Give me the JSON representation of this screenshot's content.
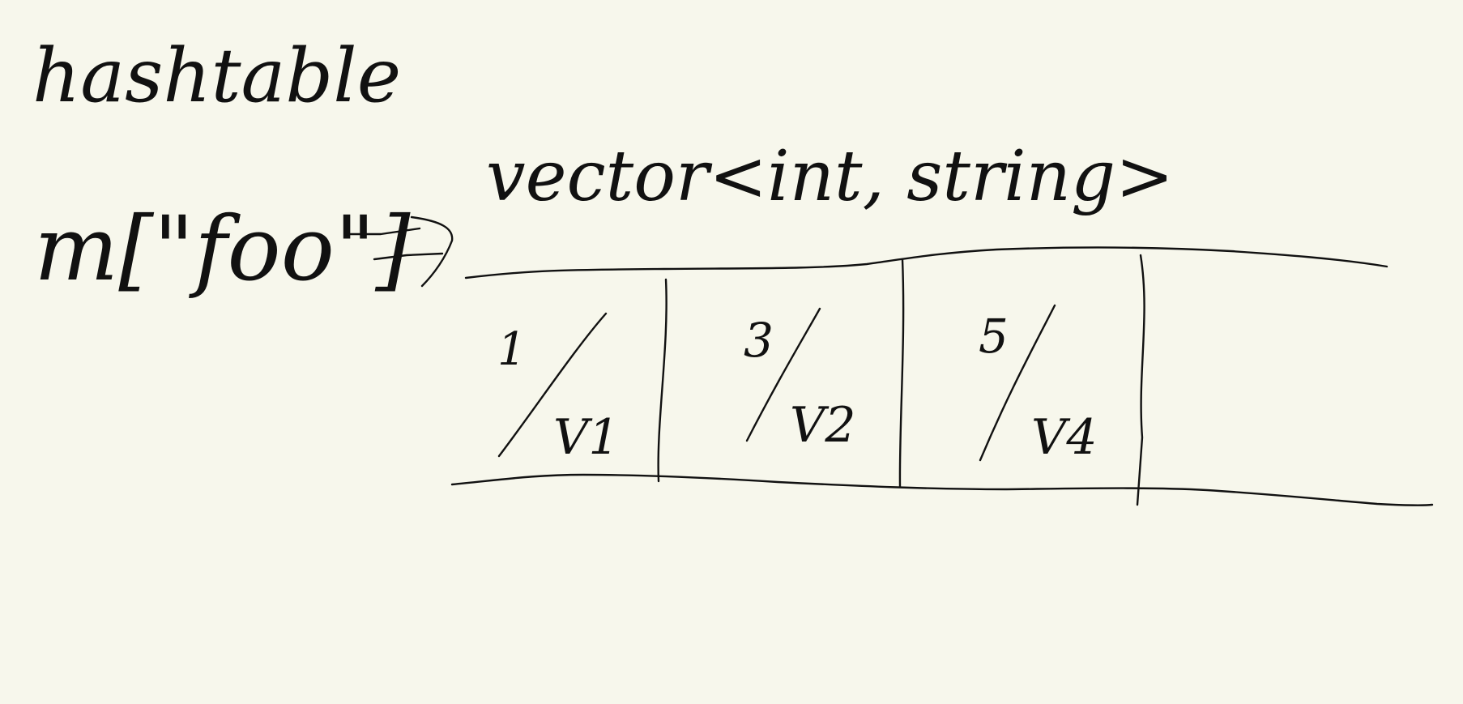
{
  "title": "hashtable",
  "expression": "m[\"foo\"]",
  "arrow_icon": "right-arrow-icon",
  "vector_label": "vector<int, string>",
  "cells": [
    {
      "fraction": "1/V1",
      "key": "1",
      "value": "V1"
    },
    {
      "fraction": "3/V2",
      "key": "3",
      "value": "V2"
    },
    {
      "fraction": "5/V4",
      "key": "5",
      "value": "V4"
    },
    {
      "fraction": "",
      "key": "",
      "value": ""
    }
  ]
}
